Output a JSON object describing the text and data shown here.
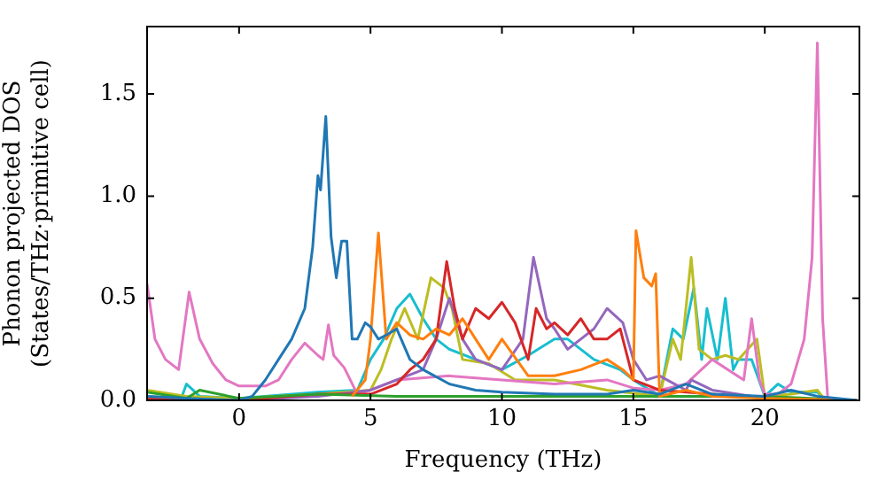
{
  "chart_data": {
    "type": "line",
    "xlabel": "Frequency (THz)",
    "ylabel": "Phonon projected DOS\n(States/THz·primitive cell)",
    "xlim": [
      -3.5,
      23.6
    ],
    "ylim": [
      0,
      1.83
    ],
    "xticks": [
      0,
      5,
      10,
      15,
      20
    ],
    "yticks": [
      {
        "value": 0,
        "label": "0.0"
      },
      {
        "value": 0.5,
        "label": "0.5"
      },
      {
        "value": 1,
        "label": "1.0"
      },
      {
        "value": 1.5,
        "label": "1.5"
      }
    ],
    "grid": false,
    "legend": false,
    "marker": "none",
    "line_style": "solid",
    "series": [
      {
        "color": "#1f77b4",
        "x": [
          -3.5,
          -2,
          0,
          0.5,
          1,
          1.5,
          2,
          2.5,
          2.8,
          3.0,
          3.1,
          3.3,
          3.5,
          3.7,
          3.9,
          4.1,
          4.3,
          4.5,
          4.8,
          5,
          5.3,
          5.6,
          6,
          6.5,
          7,
          8,
          9,
          10,
          12,
          14,
          15,
          16,
          17,
          18,
          20,
          21,
          22,
          23.5
        ],
        "values": [
          0.02,
          0.01,
          0,
          0.02,
          0.1,
          0.2,
          0.3,
          0.45,
          0.75,
          1.1,
          1.03,
          1.39,
          0.8,
          0.6,
          0.78,
          0.78,
          0.3,
          0.3,
          0.38,
          0.36,
          0.3,
          0.32,
          0.35,
          0.2,
          0.15,
          0.08,
          0.05,
          0.04,
          0.03,
          0.03,
          0.05,
          0.03,
          0.08,
          0.03,
          0.02,
          0.05,
          0.02,
          0
        ]
      },
      {
        "color": "#ff7f0e",
        "x": [
          4.3,
          4.8,
          5.0,
          5.3,
          5.6,
          6,
          6.5,
          7,
          7.5,
          8,
          8.5,
          9,
          9.5,
          10,
          11,
          12,
          13,
          14,
          14.6,
          15.0,
          15.1,
          15.4,
          15.7,
          15.85,
          16,
          17,
          18,
          20,
          23.5
        ],
        "values": [
          0.02,
          0.1,
          0.3,
          0.82,
          0.3,
          0.38,
          0.32,
          0.3,
          0.35,
          0.32,
          0.4,
          0.3,
          0.2,
          0.3,
          0.12,
          0.12,
          0.15,
          0.2,
          0.15,
          0.1,
          0.83,
          0.6,
          0.56,
          0.62,
          0.02,
          0.05,
          0.02,
          0.01,
          0
        ]
      },
      {
        "color": "#2ca02c",
        "x": [
          -3.5,
          -2,
          -1.5,
          0,
          3,
          6,
          10,
          15,
          20,
          23.5
        ],
        "values": [
          0.04,
          0.01,
          0.05,
          0.01,
          0.03,
          0.02,
          0.02,
          0.02,
          0.02,
          0
        ]
      },
      {
        "color": "#d62728",
        "x": [
          -3.5,
          0,
          3,
          5,
          6,
          6.5,
          7,
          7.5,
          7.9,
          8.2,
          8.5,
          9,
          9.5,
          10,
          10.5,
          11,
          11.3,
          11.7,
          12,
          12.5,
          13,
          13.5,
          14,
          14.5,
          15,
          16,
          18,
          20,
          23.5
        ],
        "values": [
          0.01,
          0,
          0.03,
          0.03,
          0.08,
          0.15,
          0.2,
          0.3,
          0.68,
          0.45,
          0.3,
          0.45,
          0.4,
          0.48,
          0.38,
          0.2,
          0.45,
          0.35,
          0.38,
          0.32,
          0.4,
          0.3,
          0.3,
          0.35,
          0.1,
          0.05,
          0.03,
          0.01,
          0
        ]
      },
      {
        "color": "#9467bd",
        "x": [
          -3.5,
          0,
          3,
          5,
          6,
          7,
          7.5,
          8,
          8.5,
          9,
          10,
          10.8,
          11.2,
          11.7,
          12,
          12.5,
          13,
          13.5,
          14,
          14.6,
          15,
          15.5,
          16,
          17,
          17.2,
          18,
          20,
          23.5
        ],
        "values": [
          0.01,
          0,
          0.02,
          0.05,
          0.1,
          0.15,
          0.3,
          0.5,
          0.3,
          0.2,
          0.15,
          0.3,
          0.7,
          0.4,
          0.35,
          0.25,
          0.3,
          0.35,
          0.45,
          0.38,
          0.2,
          0.1,
          0.12,
          0.05,
          0.1,
          0.05,
          0.01,
          0
        ]
      },
      {
        "color": "#e377c2",
        "x": [
          -3.5,
          -3.2,
          -2.8,
          -2.3,
          -1.9,
          -1.5,
          -1,
          -0.5,
          0,
          1,
          1.5,
          2,
          2.5,
          3,
          3.2,
          3.4,
          3.6,
          4,
          4.5,
          5,
          6,
          8,
          10,
          12,
          14,
          15,
          16,
          17,
          18,
          19.2,
          19.5,
          19.8,
          20,
          20.5,
          21,
          21.5,
          21.8,
          22.0,
          22.2,
          22.4,
          23.5
        ],
        "values": [
          0.57,
          0.3,
          0.2,
          0.15,
          0.53,
          0.3,
          0.18,
          0.1,
          0.07,
          0.07,
          0.1,
          0.2,
          0.28,
          0.22,
          0.2,
          0.37,
          0.22,
          0.16,
          0.03,
          0.05,
          0.1,
          0.12,
          0.1,
          0.08,
          0.1,
          0.06,
          0.05,
          0.08,
          0.2,
          0.1,
          0.4,
          0.1,
          0.03,
          0.03,
          0.08,
          0.3,
          0.7,
          1.75,
          0.4,
          0,
          0
        ]
      },
      {
        "color": "#bcbd22",
        "x": [
          -3.5,
          -2,
          0,
          3,
          5,
          5.4,
          5.8,
          6.3,
          6.8,
          7.3,
          7.8,
          8.1,
          8.5,
          9.5,
          10.5,
          12,
          14,
          16,
          16.5,
          16.8,
          17.2,
          17.5,
          18,
          18.5,
          19,
          19.7,
          20,
          21,
          22,
          22.3,
          23.5
        ],
        "values": [
          0.05,
          0.02,
          0.01,
          0.03,
          0.05,
          0.15,
          0.3,
          0.45,
          0.3,
          0.6,
          0.55,
          0.45,
          0.2,
          0.18,
          0.1,
          0.1,
          0.05,
          0.02,
          0.3,
          0.2,
          0.7,
          0.25,
          0.2,
          0.22,
          0.2,
          0.3,
          0.02,
          0.03,
          0.05,
          0,
          0
        ]
      },
      {
        "color": "#17becf",
        "x": [
          -3.5,
          -2.2,
          -2,
          -1.5,
          0,
          3,
          4.5,
          5,
          5.5,
          6,
          6.5,
          7,
          7.5,
          8,
          9,
          10,
          11,
          12,
          12.5,
          13.5,
          14.5,
          15,
          16,
          16.5,
          16.9,
          17.3,
          17.6,
          17.8,
          18.2,
          18.5,
          18.8,
          19,
          19.5,
          20,
          20.5,
          21,
          22,
          22.3,
          23.5
        ],
        "values": [
          0.02,
          0.01,
          0.08,
          0.02,
          0.01,
          0.04,
          0.05,
          0.2,
          0.3,
          0.45,
          0.52,
          0.4,
          0.3,
          0.25,
          0.2,
          0.15,
          0.22,
          0.3,
          0.3,
          0.2,
          0.15,
          0.1,
          0.02,
          0.35,
          0.3,
          0.55,
          0.2,
          0.45,
          0.2,
          0.5,
          0.15,
          0.2,
          0.2,
          0.02,
          0.08,
          0.04,
          0.04,
          0,
          0
        ]
      }
    ]
  }
}
